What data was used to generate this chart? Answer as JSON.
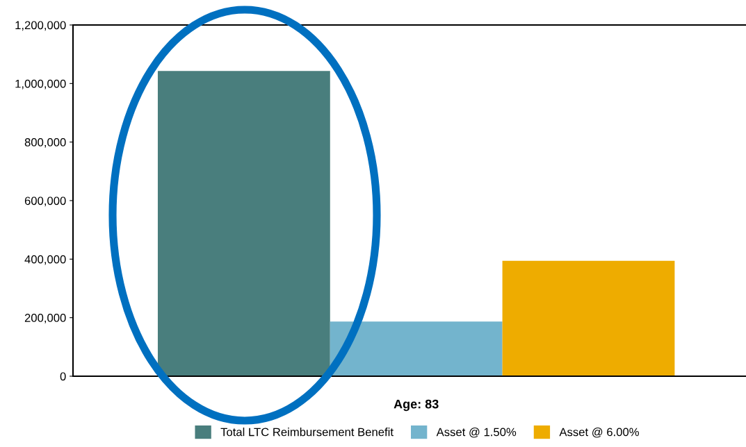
{
  "chart_data": {
    "type": "bar",
    "categories": [
      "Age: 83"
    ],
    "series": [
      {
        "name": "Total LTC Reimbursement Benefit",
        "color": "#497e7d",
        "values": [
          1043000
        ]
      },
      {
        "name": "Asset @ 1.50%",
        "color": "#73b4cd",
        "values": [
          187000
        ]
      },
      {
        "name": "Asset @ 6.00%",
        "color": "#eeac00",
        "values": [
          394000
        ]
      }
    ],
    "ylim": [
      0,
      1200000
    ],
    "yticks": [
      {
        "value": 0,
        "label": "0"
      },
      {
        "value": 200000,
        "label": "200,000"
      },
      {
        "value": 400000,
        "label": "400,000"
      },
      {
        "value": 600000,
        "label": "600,000"
      },
      {
        "value": 800000,
        "label": "800,000"
      },
      {
        "value": 1000000,
        "label": "1,000,000"
      },
      {
        "value": 1200000,
        "label": "1,200,000"
      }
    ],
    "grid": false,
    "legend": "bottom"
  }
}
